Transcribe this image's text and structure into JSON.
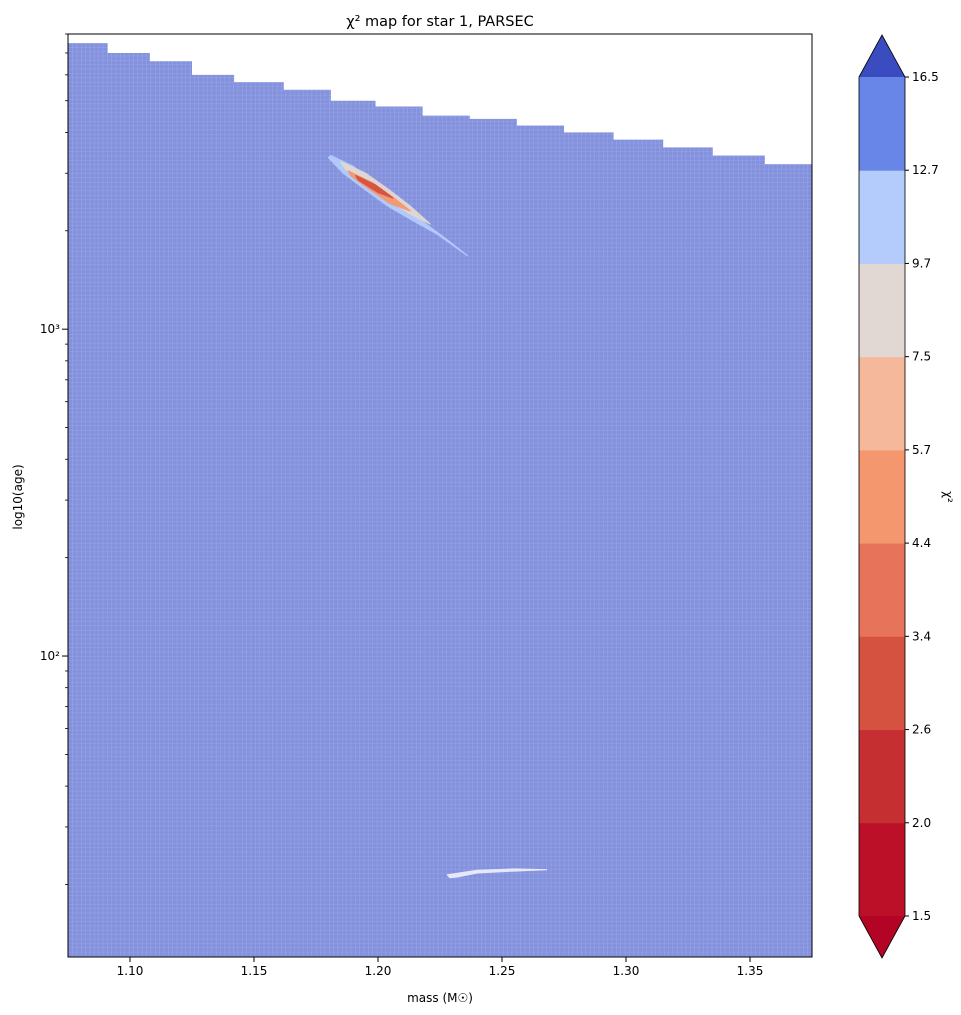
{
  "chart_data": {
    "type": "heatmap",
    "title": "χ² map for star 1, PARSEC",
    "xlabel": "mass (M☉)",
    "ylabel": "log10(age)",
    "xlim": [
      1.075,
      1.375
    ],
    "ylim": [
      12,
      8000
    ],
    "y_scale": "log",
    "x_ticks": [
      1.1,
      1.15,
      1.2,
      1.25,
      1.3,
      1.35
    ],
    "x_tick_labels": [
      "1.10",
      "1.15",
      "1.20",
      "1.25",
      "1.30",
      "1.35"
    ],
    "y_major_ticks": [
      100,
      1000
    ],
    "y_tick_labels": [
      "10²",
      "10³"
    ],
    "grid": "on",
    "colormap": "coolwarm_r",
    "colorbar": {
      "label": "χ²",
      "location": "right",
      "levels": [
        1.5,
        2.0,
        2.6,
        3.4,
        4.4,
        5.7,
        7.5,
        9.7,
        12.7,
        16.5
      ],
      "level_labels": [
        "1.5",
        "2.0",
        "2.6",
        "3.4",
        "4.4",
        "5.7",
        "7.5",
        "9.7",
        "12.7",
        "16.5"
      ],
      "band_colors": [
        "#bb1028",
        "#c52f32",
        "#d55241",
        "#e6735a",
        "#f4976f",
        "#f6b89a",
        "#e2d8d3",
        "#b4ccfc",
        "#6886e8"
      ],
      "under_color": "#b40426",
      "over_color": "#3b4cc0",
      "extend": "both"
    },
    "background_color": "#8492de",
    "upper_boundary": [
      {
        "x": 1.075,
        "y": 7500
      },
      {
        "x": 1.091,
        "y": 7000
      },
      {
        "x": 1.108,
        "y": 6600
      },
      {
        "x": 1.125,
        "y": 6000
      },
      {
        "x": 1.142,
        "y": 5700
      },
      {
        "x": 1.162,
        "y": 5400
      },
      {
        "x": 1.181,
        "y": 5000
      },
      {
        "x": 1.199,
        "y": 4800
      },
      {
        "x": 1.218,
        "y": 4500
      },
      {
        "x": 1.237,
        "y": 4400
      },
      {
        "x": 1.256,
        "y": 4200
      },
      {
        "x": 1.275,
        "y": 4000
      },
      {
        "x": 1.295,
        "y": 3800
      },
      {
        "x": 1.315,
        "y": 3600
      },
      {
        "x": 1.335,
        "y": 3400
      },
      {
        "x": 1.356,
        "y": 3200
      },
      {
        "x": 1.375,
        "y": 3200
      }
    ],
    "features": [
      {
        "name": "old-branch",
        "color": "#b4ccfc",
        "outline": [
          {
            "x": 1.181,
            "y": 3400
          },
          {
            "x": 1.19,
            "y": 3150
          },
          {
            "x": 1.2,
            "y": 2750
          },
          {
            "x": 1.21,
            "y": 2400
          },
          {
            "x": 1.22,
            "y": 2080
          },
          {
            "x": 1.227,
            "y": 1900
          },
          {
            "x": 1.236,
            "y": 1680
          },
          {
            "x": 1.224,
            "y": 1950
          },
          {
            "x": 1.214,
            "y": 2150
          },
          {
            "x": 1.204,
            "y": 2380
          },
          {
            "x": 1.194,
            "y": 2700
          },
          {
            "x": 1.186,
            "y": 3000
          },
          {
            "x": 1.18,
            "y": 3350
          }
        ]
      },
      {
        "name": "old-branch-core-light",
        "color": "#e2d8d3",
        "outline": [
          {
            "x": 1.185,
            "y": 3250
          },
          {
            "x": 1.195,
            "y": 3000
          },
          {
            "x": 1.205,
            "y": 2650
          },
          {
            "x": 1.213,
            "y": 2380
          },
          {
            "x": 1.221,
            "y": 2100
          },
          {
            "x": 1.214,
            "y": 2230
          },
          {
            "x": 1.204,
            "y": 2480
          },
          {
            "x": 1.195,
            "y": 2780
          },
          {
            "x": 1.187,
            "y": 3080
          }
        ]
      },
      {
        "name": "old-branch-core",
        "color": "#f4976f",
        "outline": [
          {
            "x": 1.188,
            "y": 3050
          },
          {
            "x": 1.198,
            "y": 2800
          },
          {
            "x": 1.207,
            "y": 2500
          },
          {
            "x": 1.213,
            "y": 2300
          },
          {
            "x": 1.205,
            "y": 2420
          },
          {
            "x": 1.196,
            "y": 2700
          },
          {
            "x": 1.189,
            "y": 2950
          }
        ]
      },
      {
        "name": "old-branch-center",
        "color": "#d55241",
        "outline": [
          {
            "x": 1.191,
            "y": 2950
          },
          {
            "x": 1.199,
            "y": 2760
          },
          {
            "x": 1.206,
            "y": 2520
          },
          {
            "x": 1.2,
            "y": 2620
          },
          {
            "x": 1.192,
            "y": 2860
          }
        ]
      },
      {
        "name": "young-branch",
        "color": "#eaeefc",
        "outline": [
          {
            "x": 1.228,
            "y": 21.4
          },
          {
            "x": 1.24,
            "y": 22.1
          },
          {
            "x": 1.255,
            "y": 22.3
          },
          {
            "x": 1.268,
            "y": 22.2
          },
          {
            "x": 1.255,
            "y": 22.0
          },
          {
            "x": 1.24,
            "y": 21.7
          },
          {
            "x": 1.232,
            "y": 21.1
          },
          {
            "x": 1.229,
            "y": 21.0
          }
        ]
      }
    ]
  }
}
